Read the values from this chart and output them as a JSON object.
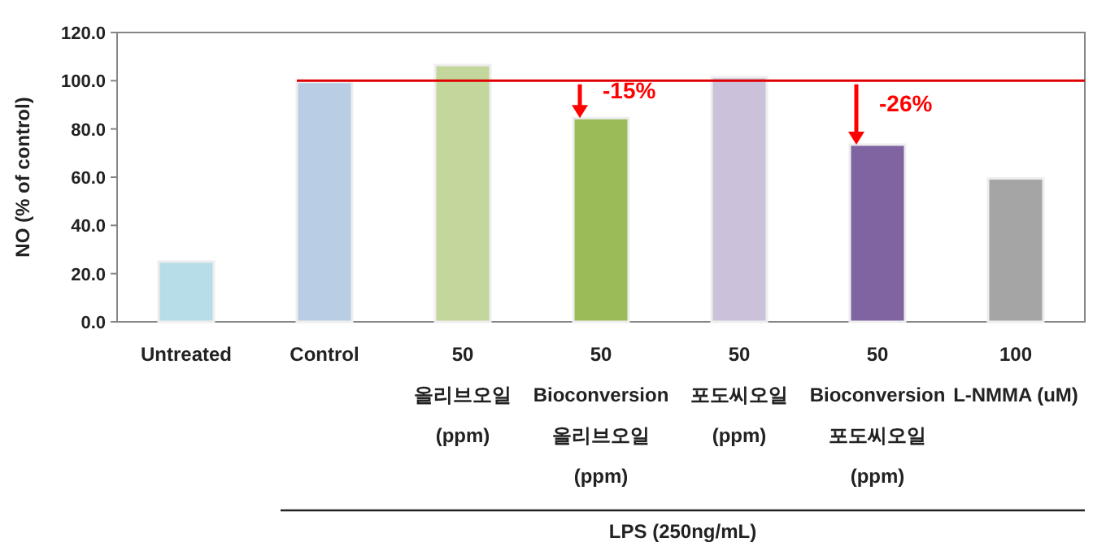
{
  "chart_data": {
    "type": "bar",
    "ylabel": "NO (% of control)",
    "categories": [
      "Untreated",
      "Control",
      "50\n올리브오일\n(ppm)",
      "50\nBioconversion\n올리브오일\n(ppm)",
      "50\n포도씨오일\n(ppm)",
      "50\nBioconversion\n포도씨오일\n(ppm)",
      "100\nL-NMMA (uM)"
    ],
    "values": [
      25.0,
      99.5,
      106.5,
      84.5,
      101.5,
      73.5,
      59.5
    ],
    "colors": [
      "#b7dde8",
      "#b9cde5",
      "#c3d69b",
      "#9bbb59",
      "#ccc1da",
      "#8064a2",
      "#a5a5a5"
    ],
    "ylim": [
      0,
      120
    ],
    "yticks": [
      {
        "value": 0,
        "label": "0.0"
      },
      {
        "value": 20,
        "label": "20.0"
      },
      {
        "value": 40,
        "label": "40.0"
      },
      {
        "value": 60,
        "label": "60.0"
      },
      {
        "value": 80,
        "label": "80.0"
      },
      {
        "value": 100,
        "label": "100.0"
      },
      {
        "value": 120,
        "label": "120.0"
      }
    ],
    "ref_lines": [
      {
        "axis": "y",
        "value": 100,
        "color": "#e00000"
      }
    ],
    "annotations": [
      {
        "text": "-15%",
        "x": "50\nBioconversion\n올리브오일\n(ppm)",
        "y": 84.5
      },
      {
        "text": "-26%",
        "x": "50\nBioconversion\n포도씨오일\n(ppm)",
        "y": 73.5
      },
      "LPS (250ng/mL)"
    ]
  }
}
